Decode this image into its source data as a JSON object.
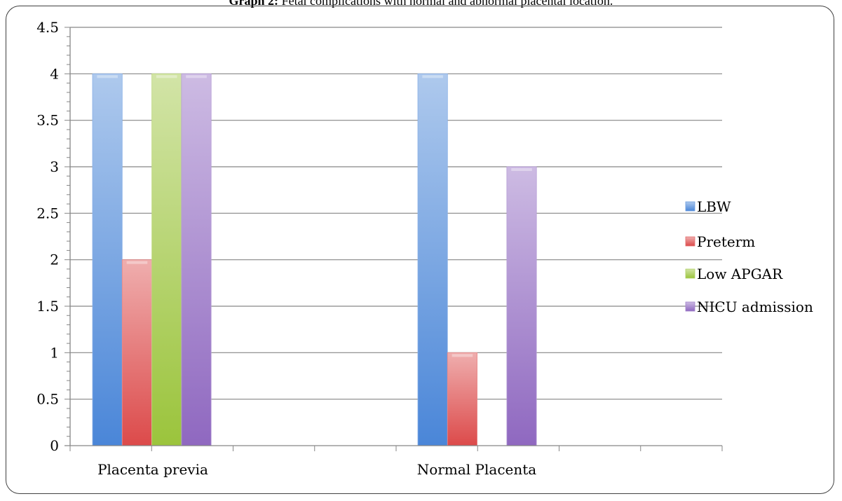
{
  "caption": {
    "bold": "Graph 2:",
    "text": " Fetal complications with normal and abnormal placental location."
  },
  "chart_data": {
    "type": "bar",
    "title": "",
    "xlabel": "",
    "ylabel": "",
    "categories": [
      "Placenta previa",
      "Normal Placenta"
    ],
    "ylim": [
      0,
      4.5
    ],
    "yticks": [
      "0",
      "0.5",
      "1",
      "1.5",
      "2",
      "2.5",
      "3",
      "3.5",
      "4",
      "4.5"
    ],
    "grid": true,
    "legend_position": "right",
    "series": [
      {
        "name": "LBW",
        "values": [
          4,
          4
        ],
        "color": "#4a86d8"
      },
      {
        "name": "Preterm",
        "values": [
          2,
          1
        ],
        "color": "#dc4a4a"
      },
      {
        "name": "Low APGAR",
        "values": [
          4,
          0
        ],
        "color": "#9bc43c"
      },
      {
        "name": "NICU admission",
        "values": [
          4,
          3
        ],
        "color": "#8f68c0"
      }
    ]
  }
}
